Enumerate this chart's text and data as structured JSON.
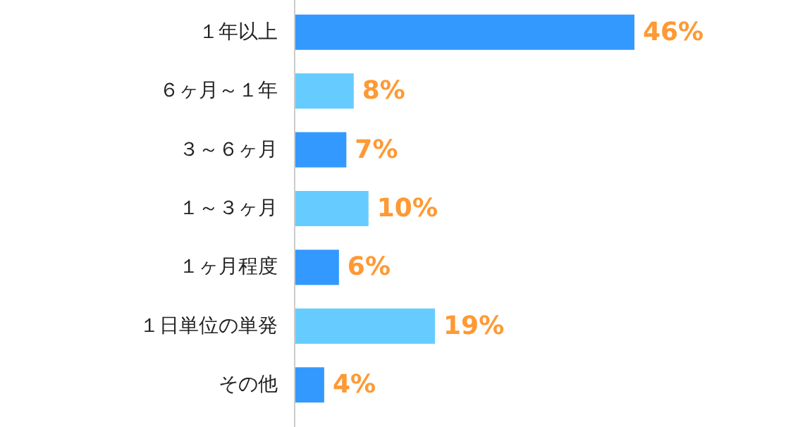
{
  "chart_data": {
    "type": "bar",
    "orientation": "horizontal",
    "categories": [
      "１年以上",
      "６ヶ月～１年",
      "３～６ヶ月",
      "１～３ヶ月",
      "１ヶ月程度",
      "１日単位の単発",
      "その他"
    ],
    "values": [
      46,
      8,
      7,
      10,
      6,
      19,
      4
    ],
    "colors": [
      "#3399ff",
      "#66ccff",
      "#3399ff",
      "#66ccff",
      "#3399ff",
      "#66ccff",
      "#3399ff"
    ],
    "value_labels": [
      "46%",
      "8%",
      "7%",
      "10%",
      "6%",
      "19%",
      "4%"
    ]
  }
}
